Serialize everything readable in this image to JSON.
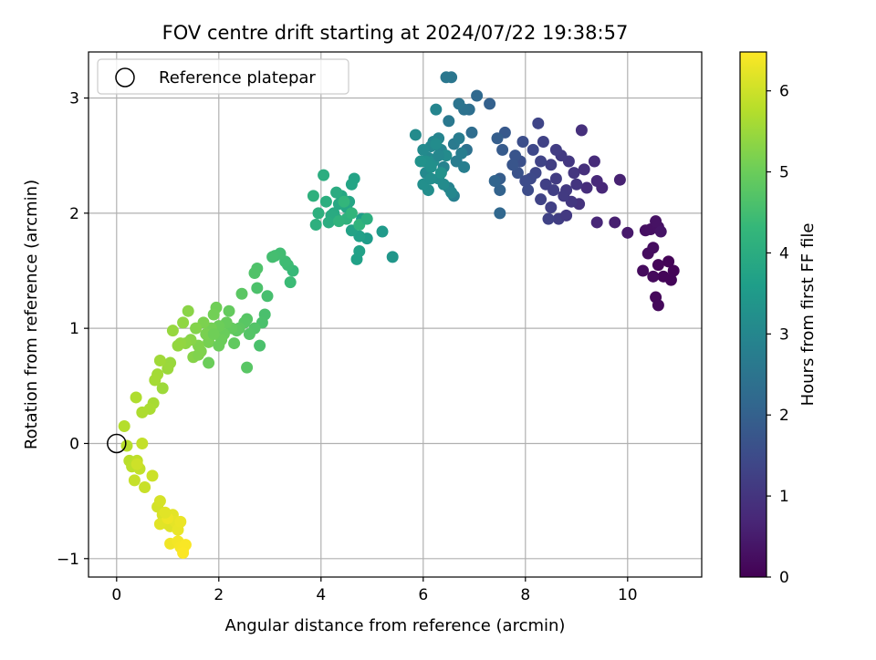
{
  "chart_data": {
    "type": "scatter",
    "title": "FOV centre drift starting at 2024/07/22 19:38:57",
    "xlabel": "Angular distance from reference (arcmin)",
    "ylabel": "Rotation from reference (arcmin)",
    "xlim": [
      -0.55,
      11.45
    ],
    "ylim": [
      -1.16,
      3.4
    ],
    "xticks": [
      0,
      2,
      4,
      6,
      8,
      10
    ],
    "yticks": [
      -1,
      0,
      1,
      2,
      3
    ],
    "grid": true,
    "legend": {
      "placement": "top-left",
      "entries": [
        {
          "label": "Reference platepar",
          "marker": "open-circle"
        }
      ]
    },
    "reference_point": {
      "x": 0,
      "y": 0
    },
    "colorbar": {
      "label": "Hours from first FF file",
      "range": [
        0,
        6.48
      ],
      "ticks": [
        0,
        1,
        2,
        3,
        4,
        5,
        6
      ],
      "colormap": [
        "#440154",
        "#482878",
        "#3e4989",
        "#31688e",
        "#26828e",
        "#1f9e89",
        "#35b779",
        "#6ece58",
        "#b5de2b",
        "#fde725"
      ]
    },
    "points": [
      [
        10.8,
        1.58,
        0.05
      ],
      [
        10.9,
        1.5,
        0.06
      ],
      [
        10.7,
        1.45,
        0.07
      ],
      [
        10.85,
        1.42,
        0.08
      ],
      [
        10.6,
        1.55,
        0.1
      ],
      [
        10.55,
        1.27,
        0.12
      ],
      [
        10.6,
        1.2,
        0.14
      ],
      [
        10.5,
        1.45,
        0.16
      ],
      [
        10.3,
        1.5,
        0.18
      ],
      [
        10.4,
        1.65,
        0.2
      ],
      [
        10.5,
        1.7,
        0.22
      ],
      [
        10.35,
        1.85,
        0.25
      ],
      [
        10.45,
        1.86,
        0.28
      ],
      [
        10.6,
        1.88,
        0.3
      ],
      [
        10.55,
        1.93,
        0.32
      ],
      [
        10.65,
        1.84,
        0.35
      ],
      [
        10.0,
        1.83,
        0.45
      ],
      [
        9.75,
        1.92,
        0.55
      ],
      [
        9.85,
        2.29,
        0.6
      ],
      [
        9.4,
        1.92,
        0.7
      ],
      [
        9.5,
        2.22,
        0.72
      ],
      [
        9.4,
        2.28,
        0.75
      ],
      [
        9.35,
        2.45,
        0.8
      ],
      [
        9.2,
        2.22,
        0.85
      ],
      [
        9.1,
        2.72,
        0.9
      ],
      [
        9.05,
        2.08,
        0.95
      ],
      [
        9.0,
        2.25,
        1.0
      ],
      [
        8.95,
        2.35,
        1.02
      ],
      [
        8.85,
        2.45,
        1.05
      ],
      [
        8.8,
        2.2,
        1.1
      ],
      [
        8.7,
        2.5,
        1.12
      ],
      [
        8.6,
        2.3,
        1.15
      ],
      [
        8.5,
        2.42,
        1.2
      ],
      [
        8.4,
        2.25,
        1.25
      ],
      [
        8.35,
        2.62,
        1.28
      ],
      [
        8.3,
        2.45,
        1.3
      ],
      [
        8.25,
        2.78,
        1.35
      ],
      [
        8.2,
        2.35,
        1.4
      ],
      [
        8.15,
        2.55,
        1.42
      ],
      [
        8.1,
        2.3,
        1.45
      ],
      [
        8.05,
        2.2,
        1.5
      ],
      [
        8.0,
        2.28,
        1.52
      ],
      [
        7.95,
        2.62,
        1.55
      ],
      [
        7.9,
        2.45,
        1.6
      ],
      [
        7.85,
        2.35,
        1.65
      ],
      [
        8.65,
        1.95,
        1.2
      ],
      [
        8.8,
        1.98,
        1.1
      ],
      [
        8.5,
        2.05,
        1.25
      ],
      [
        8.45,
        1.95,
        1.28
      ],
      [
        8.9,
        2.1,
        1.05
      ],
      [
        8.3,
        2.12,
        1.3
      ],
      [
        8.6,
        2.55,
        1.18
      ],
      [
        8.75,
        2.15,
        1.12
      ],
      [
        8.55,
        2.2,
        1.22
      ],
      [
        9.15,
        2.38,
        0.9
      ],
      [
        7.8,
        2.5,
        1.7
      ],
      [
        7.75,
        2.42,
        1.72
      ],
      [
        7.6,
        2.7,
        1.8
      ],
      [
        7.55,
        2.55,
        1.85
      ],
      [
        7.5,
        2.3,
        1.9
      ],
      [
        7.45,
        2.65,
        1.92
      ],
      [
        7.3,
        2.95,
        2.0
      ],
      [
        7.5,
        2.2,
        2.05
      ],
      [
        7.4,
        2.28,
        2.1
      ],
      [
        7.5,
        2.0,
        2.15
      ],
      [
        7.05,
        3.02,
        2.2
      ],
      [
        6.95,
        2.7,
        2.3
      ],
      [
        6.9,
        2.9,
        2.35
      ],
      [
        6.85,
        2.55,
        2.4
      ],
      [
        6.8,
        2.9,
        2.45
      ],
      [
        6.7,
        2.95,
        2.5
      ],
      [
        6.55,
        3.18,
        2.55
      ],
      [
        6.45,
        3.18,
        2.58
      ],
      [
        6.5,
        2.8,
        2.6
      ],
      [
        6.6,
        2.6,
        2.65
      ],
      [
        6.65,
        2.45,
        2.7
      ],
      [
        6.7,
        2.65,
        2.72
      ],
      [
        6.75,
        2.52,
        2.75
      ],
      [
        6.8,
        2.4,
        2.78
      ],
      [
        6.6,
        2.15,
        2.8
      ],
      [
        6.5,
        2.22,
        2.85
      ],
      [
        6.4,
        2.4,
        2.88
      ],
      [
        6.35,
        2.55,
        2.9
      ],
      [
        6.3,
        2.65,
        2.92
      ],
      [
        6.25,
        2.9,
        2.95
      ],
      [
        6.2,
        2.62,
        2.98
      ],
      [
        6.15,
        2.58,
        3.0
      ],
      [
        6.1,
        2.48,
        3.02
      ],
      [
        6.05,
        2.35,
        3.05
      ],
      [
        6.0,
        2.55,
        3.08
      ],
      [
        5.85,
        2.68,
        3.1
      ],
      [
        6.4,
        2.25,
        3.12
      ],
      [
        6.3,
        2.3,
        3.15
      ],
      [
        6.2,
        2.45,
        3.18
      ],
      [
        6.1,
        2.2,
        3.2
      ],
      [
        6.0,
        2.25,
        3.22
      ],
      [
        6.05,
        2.45,
        3.25
      ],
      [
        6.35,
        2.35,
        3.28
      ],
      [
        6.45,
        2.5,
        3.1
      ],
      [
        6.55,
        2.18,
        3.0
      ],
      [
        6.25,
        2.6,
        3.15
      ],
      [
        6.15,
        2.4,
        3.25
      ],
      [
        5.95,
        2.45,
        3.3
      ],
      [
        6.3,
        2.5,
        3.0
      ],
      [
        6.15,
        2.3,
        3.2
      ],
      [
        5.4,
        1.62,
        3.4
      ],
      [
        5.2,
        1.84,
        3.5
      ],
      [
        4.9,
        1.78,
        3.55
      ],
      [
        4.8,
        1.95,
        3.6
      ],
      [
        4.75,
        1.8,
        3.65
      ],
      [
        4.7,
        1.6,
        3.68
      ],
      [
        4.75,
        1.67,
        3.7
      ],
      [
        4.6,
        1.85,
        3.72
      ],
      [
        4.65,
        2.3,
        3.75
      ],
      [
        4.6,
        2.25,
        3.78
      ],
      [
        4.55,
        2.1,
        3.8
      ],
      [
        4.5,
        2.05,
        3.82
      ],
      [
        4.4,
        2.15,
        3.85
      ],
      [
        4.35,
        2.08,
        3.88
      ],
      [
        4.3,
        1.95,
        3.9
      ],
      [
        4.25,
        2.0,
        3.92
      ],
      [
        4.2,
        1.98,
        3.95
      ],
      [
        4.3,
        2.18,
        3.98
      ],
      [
        4.15,
        1.92,
        4.0
      ],
      [
        4.05,
        2.33,
        4.02
      ],
      [
        4.1,
        2.1,
        4.05
      ],
      [
        3.95,
        2.0,
        4.08
      ],
      [
        3.9,
        1.9,
        4.1
      ],
      [
        3.85,
        2.15,
        4.12
      ],
      [
        4.5,
        1.95,
        4.15
      ],
      [
        4.35,
        1.93,
        4.18
      ],
      [
        4.75,
        1.9,
        4.2
      ],
      [
        4.6,
        2.0,
        4.22
      ],
      [
        4.45,
        2.1,
        4.25
      ],
      [
        4.9,
        1.95,
        4.05
      ],
      [
        3.45,
        1.5,
        4.35
      ],
      [
        3.4,
        1.4,
        4.4
      ],
      [
        3.35,
        1.55,
        4.42
      ],
      [
        3.3,
        1.58,
        4.45
      ],
      [
        3.2,
        1.65,
        4.48
      ],
      [
        3.1,
        1.63,
        4.5
      ],
      [
        3.05,
        1.62,
        4.52
      ],
      [
        2.95,
        1.28,
        4.55
      ],
      [
        2.9,
        1.12,
        4.58
      ],
      [
        2.85,
        1.05,
        4.6
      ],
      [
        2.75,
        1.35,
        4.62
      ],
      [
        2.75,
        1.52,
        4.65
      ],
      [
        2.7,
        1.48,
        4.68
      ],
      [
        2.7,
        1.0,
        4.7
      ],
      [
        2.6,
        0.95,
        4.72
      ],
      [
        2.55,
        1.08,
        4.75
      ],
      [
        2.5,
        1.05,
        4.78
      ],
      [
        2.45,
        1.3,
        4.8
      ],
      [
        2.4,
        1.0,
        4.82
      ],
      [
        2.35,
        0.98,
        4.85
      ],
      [
        2.3,
        0.87,
        4.88
      ],
      [
        2.25,
        1.0,
        4.9
      ],
      [
        2.2,
        1.15,
        4.92
      ],
      [
        2.15,
        1.05,
        4.95
      ],
      [
        2.1,
        0.95,
        4.98
      ],
      [
        2.05,
        0.9,
        5.0
      ],
      [
        2.0,
        1.02,
        5.02
      ],
      [
        1.95,
        1.18,
        5.05
      ],
      [
        1.9,
        1.12,
        5.08
      ],
      [
        1.85,
        1.0,
        5.1
      ],
      [
        1.8,
        0.88,
        5.12
      ],
      [
        1.75,
        0.95,
        5.15
      ],
      [
        1.7,
        1.05,
        5.18
      ],
      [
        1.65,
        0.8,
        5.2
      ],
      [
        1.6,
        0.85,
        5.22
      ],
      [
        1.55,
        1.0,
        5.25
      ],
      [
        1.5,
        0.75,
        5.28
      ],
      [
        1.45,
        0.9,
        5.3
      ],
      [
        1.4,
        1.15,
        5.32
      ],
      [
        1.35,
        0.87,
        5.35
      ],
      [
        1.3,
        1.05,
        5.38
      ],
      [
        1.25,
        0.87,
        5.4
      ],
      [
        1.2,
        0.85,
        5.42
      ],
      [
        1.1,
        0.98,
        5.45
      ],
      [
        1.05,
        0.7,
        5.48
      ],
      [
        1.0,
        0.65,
        5.5
      ],
      [
        0.9,
        0.48,
        5.52
      ],
      [
        0.85,
        0.72,
        5.55
      ],
      [
        0.8,
        0.6,
        5.58
      ],
      [
        0.75,
        0.55,
        5.6
      ],
      [
        0.72,
        0.35,
        5.62
      ],
      [
        0.65,
        0.3,
        5.65
      ],
      [
        0.5,
        0.27,
        5.68
      ],
      [
        0.38,
        0.4,
        5.7
      ],
      [
        1.8,
        0.7,
        5.0
      ],
      [
        2.55,
        0.66,
        4.78
      ],
      [
        2.8,
        0.85,
        4.6
      ],
      [
        1.6,
        0.77,
        5.22
      ],
      [
        1.9,
        0.95,
        5.05
      ],
      [
        2.0,
        0.85,
        5.0
      ],
      [
        0.15,
        0.15,
        5.75
      ],
      [
        0.2,
        -0.02,
        5.78
      ],
      [
        0.25,
        -0.15,
        5.8
      ],
      [
        0.3,
        -0.2,
        5.82
      ],
      [
        0.4,
        -0.15,
        5.85
      ],
      [
        0.45,
        -0.22,
        5.88
      ],
      [
        0.5,
        0.0,
        5.9
      ],
      [
        0.35,
        -0.32,
        5.92
      ],
      [
        0.55,
        -0.38,
        5.95
      ],
      [
        0.7,
        -0.28,
        5.98
      ],
      [
        0.4,
        -0.18,
        6.0
      ],
      [
        0.8,
        -0.55,
        6.05
      ],
      [
        0.85,
        -0.5,
        6.08
      ],
      [
        0.9,
        -0.62,
        6.1
      ],
      [
        0.95,
        -0.65,
        6.12
      ],
      [
        1.0,
        -0.7,
        6.15
      ],
      [
        1.05,
        -0.72,
        6.18
      ],
      [
        0.85,
        -0.7,
        6.2
      ],
      [
        1.1,
        -0.62,
        6.22
      ],
      [
        1.15,
        -0.68,
        6.25
      ],
      [
        1.2,
        -0.75,
        6.28
      ],
      [
        1.25,
        -0.68,
        6.3
      ],
      [
        1.0,
        -0.65,
        6.32
      ],
      [
        1.05,
        -0.87,
        6.35
      ],
      [
        1.2,
        -0.85,
        6.38
      ],
      [
        1.25,
        -0.9,
        6.4
      ],
      [
        1.3,
        -0.92,
        6.42
      ],
      [
        1.35,
        -0.88,
        6.44
      ],
      [
        1.3,
        -0.95,
        6.46
      ],
      [
        0.95,
        -0.6,
        6.2
      ]
    ]
  }
}
